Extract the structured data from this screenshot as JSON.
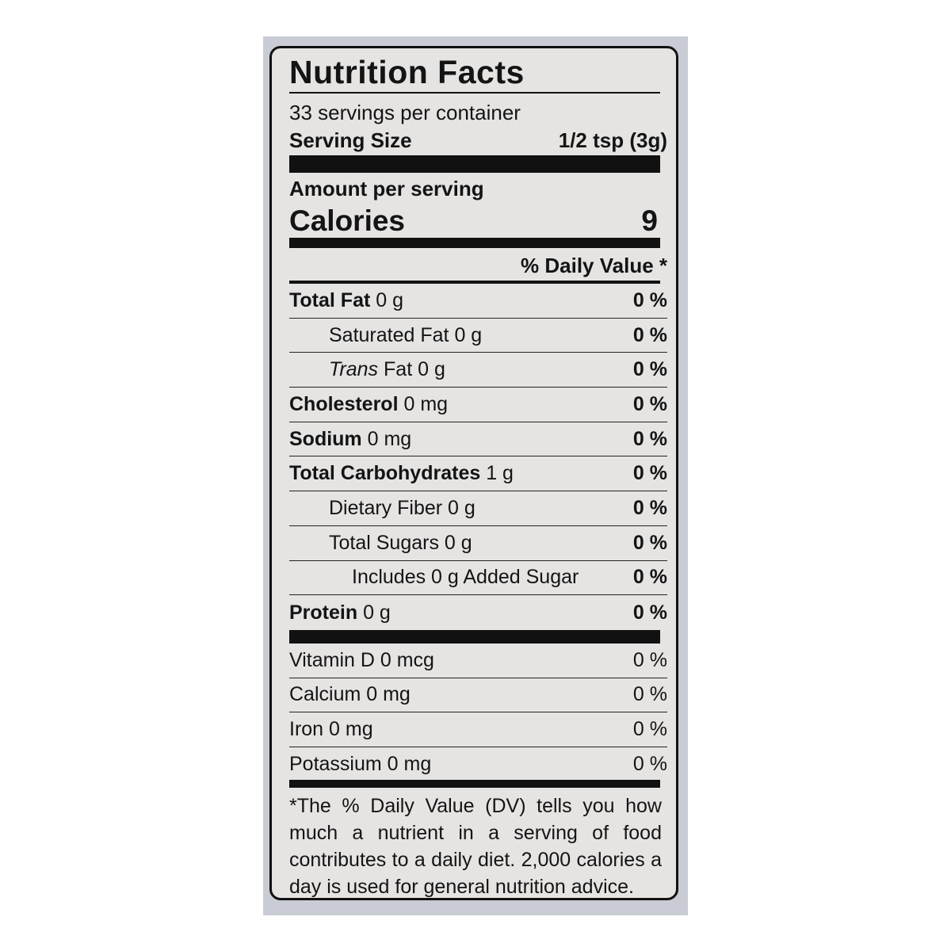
{
  "label": {
    "title": "Nutrition Facts",
    "servings_per_container": "33 servings per container",
    "serving_size_label": "Serving Size",
    "serving_size_value": "1/2 tsp (3g)",
    "amount_per_serving": "Amount per serving",
    "calories_label": "Calories",
    "calories_value": "9",
    "daily_value_header": "% Daily Value *",
    "nutrients": [
      {
        "name": "Total Fat",
        "amount": "0 g",
        "dv": "0 %",
        "bold": true,
        "indent": 0,
        "italic_name": false
      },
      {
        "name": "Saturated Fat",
        "amount": "0 g",
        "dv": "0 %",
        "bold": false,
        "indent": 1,
        "italic_name": false
      },
      {
        "name": "Trans",
        "suffix": "Fat",
        "amount": "0 g",
        "dv": "0 %",
        "bold": false,
        "indent": 1,
        "italic_name": true
      },
      {
        "name": "Cholesterol",
        "amount": "0 mg",
        "dv": "0 %",
        "bold": true,
        "indent": 0,
        "italic_name": false
      },
      {
        "name": "Sodium",
        "amount": "0 mg",
        "dv": "0 %",
        "bold": true,
        "indent": 0,
        "italic_name": false
      },
      {
        "name": "Total Carbohydrates",
        "amount": "1 g",
        "dv": "0 %",
        "bold": true,
        "indent": 0,
        "italic_name": false
      },
      {
        "name": "Dietary Fiber",
        "amount": "0 g",
        "dv": "0 %",
        "bold": false,
        "indent": 1,
        "italic_name": false
      },
      {
        "name": "Total Sugars",
        "amount": "0 g",
        "dv": "0 %",
        "bold": false,
        "indent": 1,
        "italic_name": false
      },
      {
        "name": "Includes 0 g Added Sugar",
        "amount": "",
        "dv": "0 %",
        "bold": false,
        "indent": 2,
        "italic_name": false
      },
      {
        "name": "Protein",
        "amount": "0 g",
        "dv": "0 %",
        "bold": true,
        "indent": 0,
        "italic_name": false
      }
    ],
    "vitamins": [
      {
        "name": "Vitamin D",
        "amount": "0 mcg",
        "dv": "0 %"
      },
      {
        "name": "Calcium",
        "amount": "0 mg",
        "dv": "0 %"
      },
      {
        "name": "Iron",
        "amount": "0 mg",
        "dv": "0 %"
      },
      {
        "name": "Potassium",
        "amount": "0 mg",
        "dv": "0 %"
      }
    ],
    "footnote": "*The % Daily Value (DV) tells you how much a nutrient in a serving of food contributes to a daily diet. 2,000 calories a day is used for general nutrition advice."
  },
  "colors": {
    "panel": "#c9ccd4",
    "label_bg": "#e6e4e3",
    "ink": "#141414"
  }
}
